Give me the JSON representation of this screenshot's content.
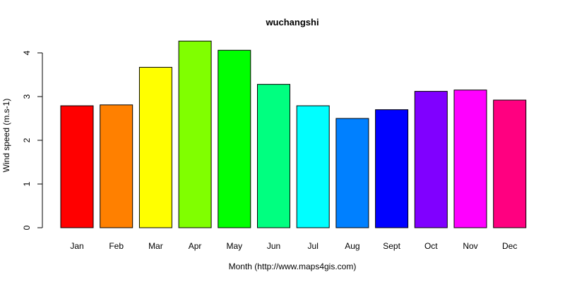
{
  "chart_data": {
    "type": "bar",
    "title": "wuchangshi",
    "xlabel": "Month (http://www.maps4gis.com)",
    "ylabel": "Wind speed (m.s-1)",
    "categories": [
      "Jan",
      "Feb",
      "Mar",
      "Apr",
      "May",
      "Jun",
      "Jul",
      "Aug",
      "Sept",
      "Oct",
      "Nov",
      "Dec"
    ],
    "values": [
      2.79,
      2.81,
      3.67,
      4.27,
      4.06,
      3.28,
      2.79,
      2.5,
      2.7,
      3.12,
      3.15,
      2.92
    ],
    "colors": [
      "#FF0000",
      "#FF8000",
      "#FFFF00",
      "#80FF00",
      "#00FF00",
      "#00FF80",
      "#00FFFF",
      "#0080FF",
      "#0000FF",
      "#8000FF",
      "#FF00FF",
      "#FF0080"
    ],
    "yticks": [
      "0",
      "1",
      "2",
      "3",
      "4"
    ],
    "ylim": [
      0,
      4.4
    ],
    "grid": false,
    "legend": "none"
  }
}
